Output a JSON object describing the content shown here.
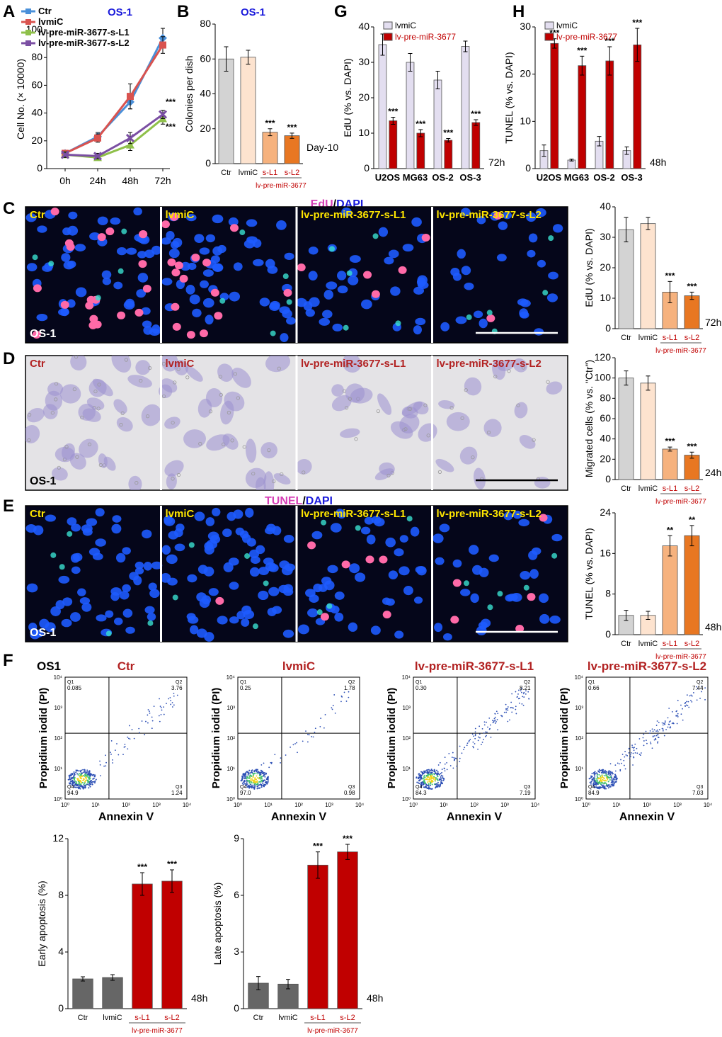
{
  "panels": {
    "A": {
      "letter": "A",
      "title": "OS-1"
    },
    "B": {
      "letter": "B",
      "title": "OS-1",
      "note": "Day-10"
    },
    "C": {
      "letter": "C",
      "title_a": "EdU",
      "title_sep": "/",
      "title_b": "DAPI",
      "cell_label": "OS-1",
      "note": "72h"
    },
    "D": {
      "letter": "D",
      "cell_label": "OS-1",
      "note": "24h"
    },
    "E": {
      "letter": "E",
      "title_a": "TUNEL",
      "title_sep": "/",
      "title_b": "DAPI",
      "cell_label": "OS-1",
      "note": "48h"
    },
    "F": {
      "letter": "F",
      "cell_label": "OS1",
      "note_early": "48h",
      "note_late": "48h"
    },
    "G": {
      "letter": "G",
      "note": "72h"
    },
    "H": {
      "letter": "H",
      "note": "48h"
    }
  },
  "image_labels": [
    "Ctr",
    "lvmiC",
    "lv-pre-miR-3677-s-L1",
    "lv-pre-miR-3677-s-L2"
  ],
  "group_label": "lv-pre-miR-3677",
  "colors": {
    "ctr": "#4a90d9",
    "lvmic": "#d9534f",
    "l1": "#8fc04a",
    "l2": "#7b4fa3",
    "gray": "#d3d3d3",
    "peach": "#fde3cf",
    "orange_light": "#f6b27e",
    "orange": "#e87722",
    "lavender": "#e3def0",
    "darkred": "#c00000",
    "darkgray": "#666666"
  },
  "chart_data": [
    {
      "id": "A",
      "type": "line",
      "x": [
        "0h",
        "24h",
        "48h",
        "72h"
      ],
      "ylabel": "Cell No. (× 10000)",
      "ylim": [
        0,
        100
      ],
      "yticks": [
        0,
        20,
        40,
        60,
        80,
        100
      ],
      "series": [
        {
          "name": "Ctr",
          "values": [
            11,
            23,
            48,
            94
          ],
          "err": [
            2,
            3,
            5,
            7
          ]
        },
        {
          "name": "lvmiC",
          "values": [
            11,
            22,
            52,
            89
          ],
          "err": [
            2,
            3,
            9,
            6
          ]
        },
        {
          "name": "lv-pre-miR-3677-s-L1",
          "values": [
            10,
            8,
            17,
            36
          ],
          "err": [
            2,
            2,
            4,
            4
          ]
        },
        {
          "name": "lv-pre-miR-3677-s-L2",
          "values": [
            10,
            9,
            22,
            39
          ],
          "err": [
            2,
            2,
            4,
            3
          ]
        }
      ],
      "annotations": [
        "***",
        "***"
      ]
    },
    {
      "id": "B",
      "type": "bar",
      "categories": [
        "Ctr",
        "lvmiC",
        "s-L1",
        "s-L2"
      ],
      "values": [
        60,
        61,
        18,
        16
      ],
      "err": [
        7,
        4,
        2,
        1.5
      ],
      "sig": [
        "",
        "",
        "***",
        "***"
      ],
      "ylabel": "Colonies per dish",
      "ylim": [
        0,
        80
      ],
      "yticks": [
        0,
        20,
        40,
        60,
        80
      ]
    },
    {
      "id": "G",
      "type": "bar",
      "categories": [
        "U2OS",
        "MG63",
        "OS-2",
        "OS-3"
      ],
      "series": [
        {
          "name": "lvmiC",
          "values": [
            35,
            30,
            25,
            34.5
          ],
          "err": [
            3,
            2.5,
            2.5,
            1.5
          ]
        },
        {
          "name": "lv-pre-miR-3677",
          "values": [
            13.5,
            10,
            8,
            13
          ],
          "err": [
            1,
            1,
            0.5,
            0.8
          ]
        }
      ],
      "sig": [
        "***",
        "***",
        "***",
        "***"
      ],
      "ylabel": "EdU (% vs. DAPI)",
      "ylim": [
        0,
        40
      ],
      "yticks": [
        0,
        10,
        20,
        30,
        40
      ]
    },
    {
      "id": "H",
      "type": "bar",
      "categories": [
        "U2OS",
        "MG63",
        "OS-2",
        "OS-3"
      ],
      "series": [
        {
          "name": "lvmiC",
          "values": [
            3.8,
            1.8,
            5.8,
            3.8
          ],
          "err": [
            1.2,
            0.2,
            1,
            0.8
          ]
        },
        {
          "name": "lv-pre-miR-3677",
          "values": [
            26.5,
            21.8,
            22.8,
            26.2
          ],
          "err": [
            1,
            2,
            3,
            3.5
          ]
        }
      ],
      "sig": [
        "***",
        "***",
        "***",
        "***"
      ],
      "ylabel": "TUNEL (% vs. DAPI)",
      "ylim": [
        0,
        30
      ],
      "yticks": [
        0,
        10,
        20,
        30
      ]
    },
    {
      "id": "C_bar",
      "type": "bar",
      "categories": [
        "Ctr",
        "lvmiC",
        "s-L1",
        "s-L2"
      ],
      "values": [
        32.5,
        34.5,
        12,
        10.8
      ],
      "err": [
        4,
        2,
        3.5,
        1.2
      ],
      "sig": [
        "",
        "",
        "***",
        "***"
      ],
      "ylabel": "EdU (% vs. DAPI)",
      "ylim": [
        0,
        40
      ],
      "yticks": [
        0,
        10,
        20,
        30,
        40
      ]
    },
    {
      "id": "D_bar",
      "type": "bar",
      "categories": [
        "Ctr",
        "lvmiC",
        "s-L1",
        "s-L2"
      ],
      "values": [
        100,
        95,
        30,
        24
      ],
      "err": [
        7,
        7,
        2,
        3
      ],
      "sig": [
        "",
        "",
        "***",
        "***"
      ],
      "ylabel": "Migrated cells (% vs. \"Ctr\")",
      "ylim": [
        0,
        120
      ],
      "yticks": [
        0,
        20,
        40,
        60,
        80,
        100,
        120
      ]
    },
    {
      "id": "E_bar",
      "type": "bar",
      "categories": [
        "Ctr",
        "lvmiC",
        "s-L1",
        "s-L2"
      ],
      "values": [
        3.8,
        3.8,
        17.5,
        19.5
      ],
      "err": [
        1,
        0.8,
        2,
        2
      ],
      "sig": [
        "",
        "",
        "**",
        "**"
      ],
      "ylabel": "TUNEL (% vs. DAPI)",
      "ylim": [
        0,
        24
      ],
      "yticks": [
        0,
        8,
        16,
        24
      ]
    },
    {
      "id": "F_early",
      "type": "bar",
      "categories": [
        "Ctr",
        "lvmiC",
        "s-L1",
        "s-L2"
      ],
      "values": [
        2.1,
        2.2,
        8.8,
        9.0
      ],
      "err": [
        0.15,
        0.2,
        0.8,
        0.8
      ],
      "sig": [
        "",
        "",
        "***",
        "***"
      ],
      "ylabel": "Early apoptosis (%)",
      "ylim": [
        0,
        12
      ],
      "yticks": [
        0,
        4,
        8,
        12
      ]
    },
    {
      "id": "F_late",
      "type": "bar",
      "categories": [
        "Ctr",
        "lvmiC",
        "s-L1",
        "s-L2"
      ],
      "values": [
        1.35,
        1.3,
        7.6,
        8.3
      ],
      "err": [
        0.35,
        0.25,
        0.7,
        0.4
      ],
      "sig": [
        "",
        "",
        "***",
        "***"
      ],
      "ylabel": "Late apoptosis (%)",
      "ylim": [
        0,
        9
      ],
      "yticks": [
        0,
        3,
        6,
        9
      ]
    },
    {
      "id": "F_flow",
      "type": "scatter",
      "xlabel": "Annexin V",
      "ylabel": "Propidium iodid (PI)",
      "plots": [
        {
          "title": "Ctr",
          "q1": "0.085",
          "q2": "3.76",
          "q3": "1.24",
          "q4": "94.9"
        },
        {
          "title": "lvmiC",
          "q1": "0.25",
          "q2": "1.78",
          "q3": "0.98",
          "q4": "97.0"
        },
        {
          "title": "lv-pre-miR-3677-s-L1",
          "q1": "0.30",
          "q2": "8.21",
          "q3": "7.19",
          "q4": "84.3"
        },
        {
          "title": "lv-pre-miR-3677-s-L2",
          "q1": "0.66",
          "q2": "7.44",
          "q3": "7.03",
          "q4": "84.9"
        }
      ]
    }
  ]
}
